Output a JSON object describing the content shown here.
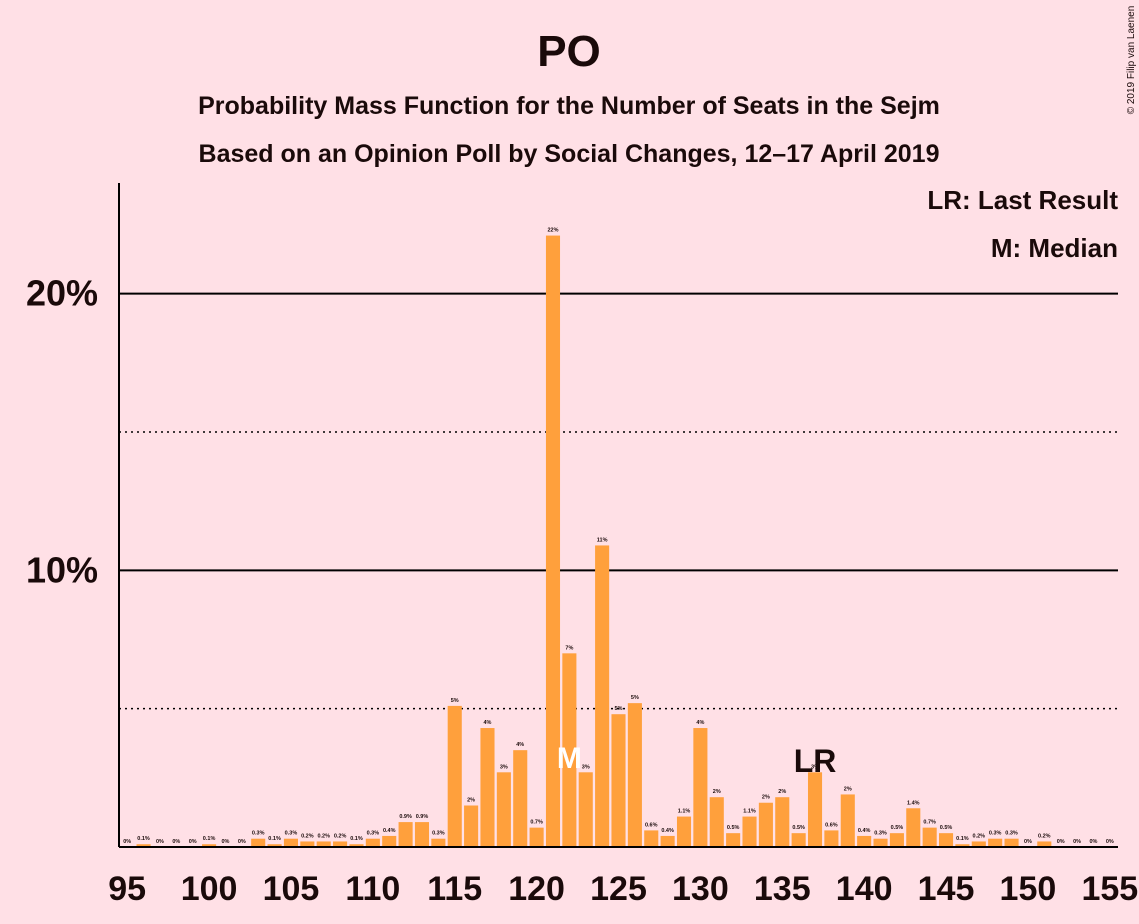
{
  "chart_data": {
    "type": "bar",
    "title": "PO",
    "subtitle": [
      "Probability Mass Function for the Number of Seats in the Sejm",
      "Based on an Opinion Poll by Social Changes, 12–17 April 2019"
    ],
    "credit": "© 2019 Filip van Laenen",
    "legend": [
      "LR: Last Result",
      "M: Median"
    ],
    "annotations": [
      {
        "text": "M",
        "x": 122
      },
      {
        "text": "LR",
        "x": 137
      }
    ],
    "color": "#ffa03c",
    "x": [
      95,
      96,
      97,
      98,
      99,
      100,
      101,
      102,
      103,
      104,
      105,
      106,
      107,
      108,
      109,
      110,
      111,
      112,
      113,
      114,
      115,
      116,
      117,
      118,
      119,
      120,
      121,
      122,
      123,
      124,
      125,
      126,
      127,
      128,
      129,
      130,
      131,
      132,
      133,
      134,
      135,
      136,
      137,
      138,
      139,
      140,
      141,
      142,
      143,
      144,
      145,
      146,
      147,
      148,
      149,
      150,
      151,
      152,
      153,
      154,
      155
    ],
    "values": [
      0,
      0.1,
      0,
      0,
      0,
      0.1,
      0,
      0,
      0.3,
      0.1,
      0.3,
      0.2,
      0.2,
      0.2,
      0.1,
      0.3,
      0.4,
      0.9,
      0.9,
      0.3,
      5.1,
      1.5,
      4.3,
      2.7,
      3.5,
      0.7,
      22.1,
      7.0,
      2.7,
      10.9,
      4.8,
      5.2,
      0.6,
      0.4,
      1.1,
      4.3,
      1.8,
      0.5,
      1.1,
      1.6,
      1.8,
      0.5,
      2.7,
      0.6,
      1.9,
      0.4,
      0.3,
      0.5,
      1.4,
      0.7,
      0.5,
      0.1,
      0.2,
      0.3,
      0.3,
      0,
      0.2,
      0,
      0,
      0,
      0
    ],
    "value_labels": [
      "0%",
      "0.1%",
      "0%",
      "0%",
      "0%",
      "0.1%",
      "0%",
      "0%",
      "0.3%",
      "0.1%",
      "0.3%",
      "0.2%",
      "0.2%",
      "0.2%",
      "0.1%",
      "0.3%",
      "0.4%",
      "0.9%",
      "0.9%",
      "0.3%",
      "5%",
      "2%",
      "4%",
      "3%",
      "4%",
      "0.7%",
      "22%",
      "7%",
      "3%",
      "11%",
      "5%",
      "5%",
      "0.6%",
      "0.4%",
      "1.1%",
      "4%",
      "2%",
      "0.5%",
      "1.1%",
      "2%",
      "2%",
      "0.5%",
      "3%",
      "0.6%",
      "2%",
      "0.4%",
      "0.3%",
      "0.5%",
      "1.4%",
      "0.7%",
      "0.5%",
      "0.1%",
      "0.2%",
      "0.3%",
      "0.3%",
      "0%",
      "0.2%",
      "0%",
      "0%",
      "0%",
      "0%"
    ],
    "xlim": [
      94.5,
      155.5
    ],
    "xticks": [
      95,
      100,
      105,
      110,
      115,
      120,
      125,
      130,
      135,
      140,
      145,
      150,
      155
    ],
    "ylim": [
      0,
      24
    ],
    "yticks": [
      {
        "value": 10,
        "label": "10%"
      },
      {
        "value": 20,
        "label": "20%"
      }
    ],
    "minor_gridlines": [
      5,
      15
    ]
  }
}
